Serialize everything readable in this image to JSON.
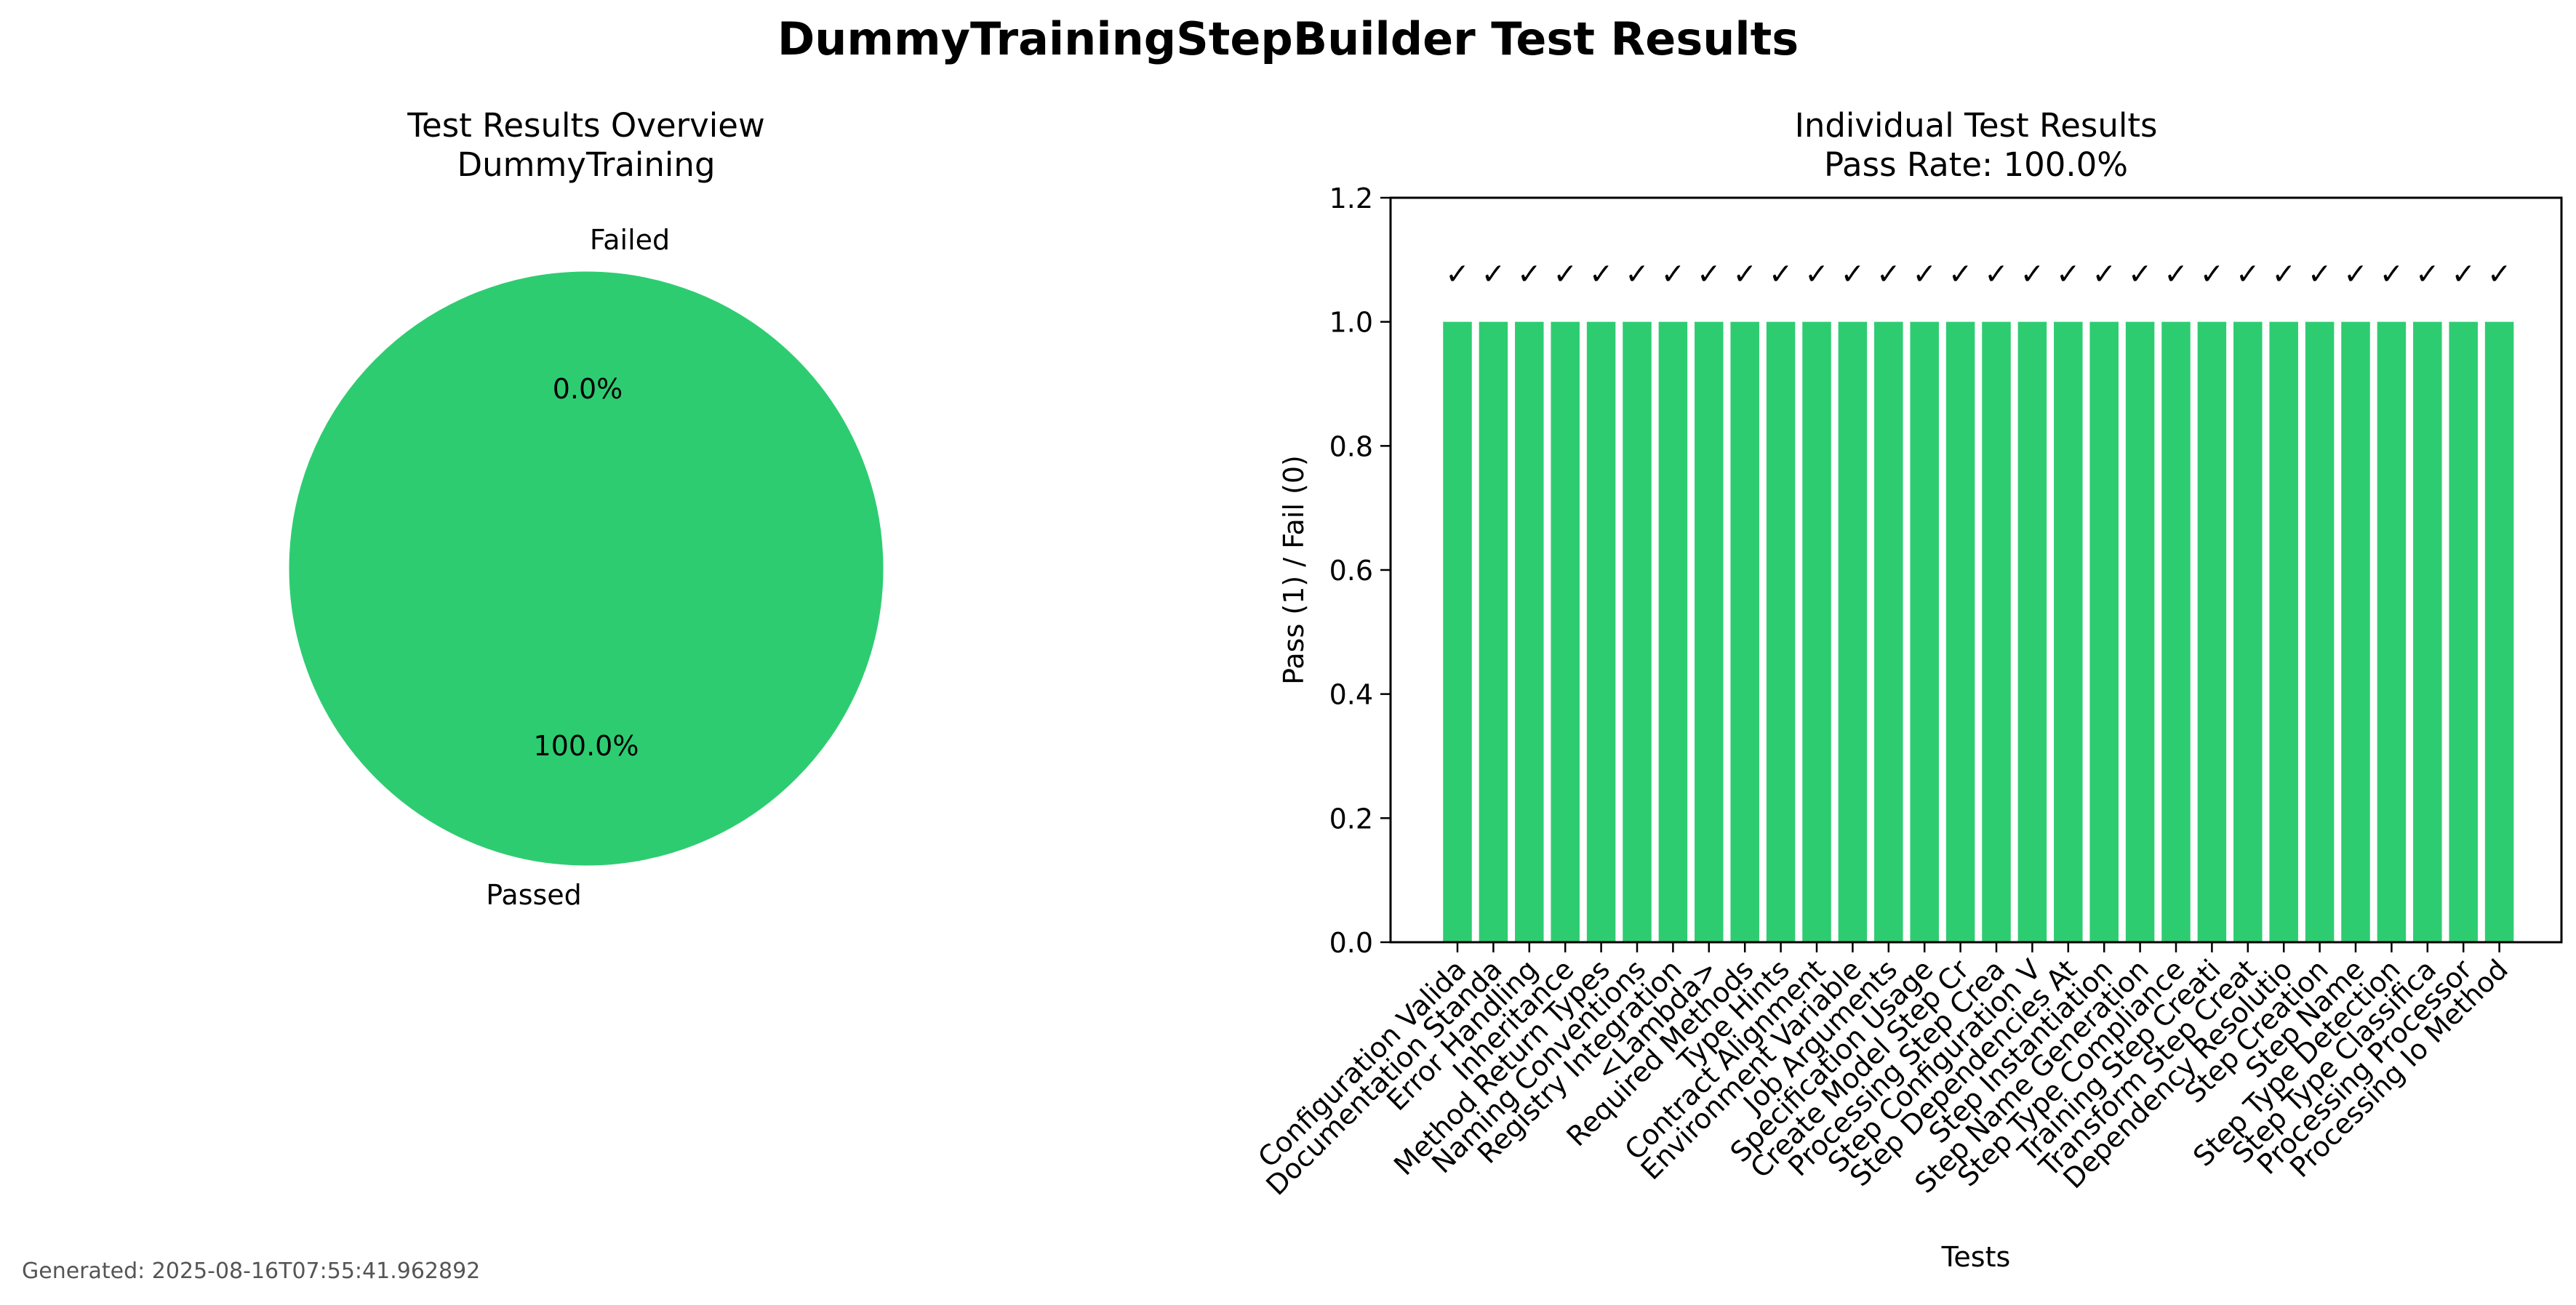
{
  "figure": {
    "title": "DummyTrainingStepBuilder Test Results",
    "footer": "Generated: 2025-08-16T07:55:41.962892"
  },
  "colors": {
    "pass": "#2ecc71",
    "fail": "#e74c3c",
    "axis": "#000000",
    "footer": "#555555"
  },
  "chart_data": [
    {
      "type": "pie",
      "title": "Test Results Overview\nDummyTraining",
      "title_lines": [
        "Test Results Overview",
        "DummyTraining"
      ],
      "slices": [
        {
          "label": "Passed",
          "value": 100.0,
          "pct_label": "100.0%",
          "color": "#2ecc71"
        },
        {
          "label": "Failed",
          "value": 0.0,
          "pct_label": "0.0%",
          "color": "#e74c3c"
        }
      ]
    },
    {
      "type": "bar",
      "title": "Individual Test Results\nPass Rate: 100.0%",
      "title_lines": [
        "Individual Test Results",
        "Pass Rate: 100.0%"
      ],
      "xlabel": "Tests",
      "ylabel": "Pass (1) / Fail (0)",
      "ylim": [
        0,
        1.2
      ],
      "yticks": [
        "0.0",
        "0.2",
        "0.4",
        "0.6",
        "0.8",
        "1.0",
        "1.2"
      ],
      "grid": false,
      "marker": "✓",
      "categories": [
        "Configuration Valida",
        "Documentation Standa",
        "Error Handling",
        "Inheritance",
        "Method Return Types",
        "Naming Conventions",
        "Registry Integration",
        "<Lambda>",
        "Required Methods",
        "Type Hints",
        "Contract Alignment",
        "Environment Variable",
        "Job Arguments",
        "Specification Usage",
        "Create Model Step Cr",
        "Processing Step Crea",
        "Step Configuration V",
        "Step Dependencies At",
        "Step Instantiation",
        "Step Name Generation",
        "Step Type Compliance",
        "Training Step Creati",
        "Transform Step Creat",
        "Dependency Resolutio",
        "Step Creation",
        "Step Name",
        "Step Type Detection",
        "Step Type Classifica",
        "Processing Processor",
        "Processing Io Method"
      ],
      "values": [
        1,
        1,
        1,
        1,
        1,
        1,
        1,
        1,
        1,
        1,
        1,
        1,
        1,
        1,
        1,
        1,
        1,
        1,
        1,
        1,
        1,
        1,
        1,
        1,
        1,
        1,
        1,
        1,
        1,
        1
      ]
    }
  ]
}
